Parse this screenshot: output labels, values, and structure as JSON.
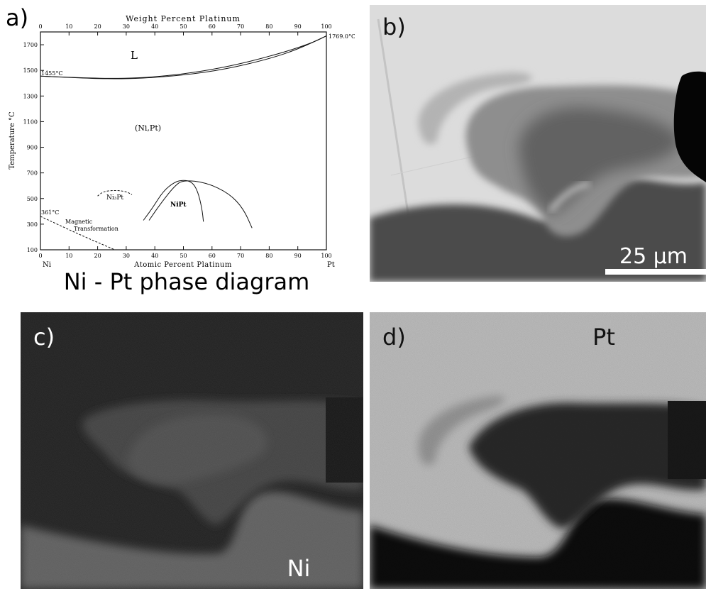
{
  "panels": {
    "a": {
      "letter": "a)",
      "caption": "Ni - Pt phase diagram",
      "top_axis_title": "Weight Percent Platinum",
      "bottom_axis_title": "Atomic Percent Platinum",
      "y_axis_title": "Temperature °C",
      "left_end_label": "Ni",
      "right_end_label": "Pt",
      "top_ticks": [
        "0",
        "10",
        "20",
        "30",
        "40",
        "50",
        "60",
        "70",
        "80",
        "90",
        "100"
      ],
      "bottom_ticks": [
        "0",
        "10",
        "20",
        "30",
        "40",
        "50",
        "60",
        "70",
        "80",
        "90",
        "100"
      ],
      "y_ticks": [
        "100",
        "300",
        "500",
        "700",
        "900",
        "1100",
        "1300",
        "1500",
        "1700"
      ],
      "labels": {
        "liquid": "L",
        "solid_solution": "(Ni,Pt)",
        "ni3pt": "Ni₃Pt",
        "nipt": "NiPt",
        "magnetic_line1": "Magnetic",
        "magnetic_line2": "Transformation",
        "ni_melting": "1455°C",
        "pt_melting": "1769.0°C",
        "curie": "361°C"
      }
    },
    "b": {
      "letter": "b)",
      "scale_bar": "25 μm"
    },
    "c": {
      "letter": "c)",
      "element": "Ni"
    },
    "d": {
      "letter": "d)",
      "element": "Pt"
    }
  },
  "chart_data": {
    "type": "line",
    "title": "Ni - Pt phase diagram",
    "xlabel": "Atomic Percent Platinum",
    "x2label": "Weight Percent Platinum",
    "ylabel": "Temperature °C",
    "xlim": [
      0,
      100
    ],
    "ylim": [
      100,
      1800
    ],
    "y_ticks": [
      100,
      300,
      500,
      700,
      900,
      1100,
      1300,
      1500,
      1700
    ],
    "annotations": [
      {
        "text": "1455°C",
        "x": 0,
        "y": 1455
      },
      {
        "text": "1769.0°C",
        "x": 100,
        "y": 1769
      },
      {
        "text": "361°C",
        "x": 0,
        "y": 361
      }
    ],
    "series": [
      {
        "values": [
          [
            0,
            1455
          ],
          [
            10,
            1444
          ],
          [
            20,
            1436
          ],
          [
            27,
            1434
          ],
          [
            35,
            1438
          ],
          [
            50,
            1462
          ],
          [
            65,
            1510
          ],
          [
            80,
            1590
          ],
          [
            90,
            1665
          ],
          [
            100,
            1769
          ]
        ]
      },
      {
        "values": [
          [
            0,
            1455
          ],
          [
            10,
            1446
          ],
          [
            20,
            1439
          ],
          [
            28,
            1437
          ],
          [
            40,
            1448
          ],
          [
            55,
            1486
          ],
          [
            70,
            1550
          ],
          [
            85,
            1640
          ],
          [
            95,
            1715
          ],
          [
            100,
            1769
          ]
        ]
      },
      {
        "values": [
          [
            20,
            520
          ],
          [
            22,
            555
          ],
          [
            26,
            565
          ],
          [
            30,
            555
          ],
          [
            32,
            530
          ]
        ]
      },
      {
        "values": [
          [
            36,
            330
          ],
          [
            39,
            420
          ],
          [
            43,
            560
          ],
          [
            47,
            630
          ],
          [
            50,
            645
          ],
          [
            53,
            630
          ],
          [
            55,
            560
          ],
          [
            56.5,
            420
          ],
          [
            57,
            320
          ]
        ]
      },
      {
        "values": [
          [
            38,
            330
          ],
          [
            42,
            460
          ],
          [
            47,
            600
          ],
          [
            50,
            645
          ],
          [
            58,
            625
          ],
          [
            66,
            540
          ],
          [
            71,
            420
          ],
          [
            74,
            270
          ]
        ]
      },
      {
        "values": [
          [
            0,
            361
          ],
          [
            13,
            225
          ],
          [
            26,
            100
          ]
        ]
      }
    ]
  }
}
